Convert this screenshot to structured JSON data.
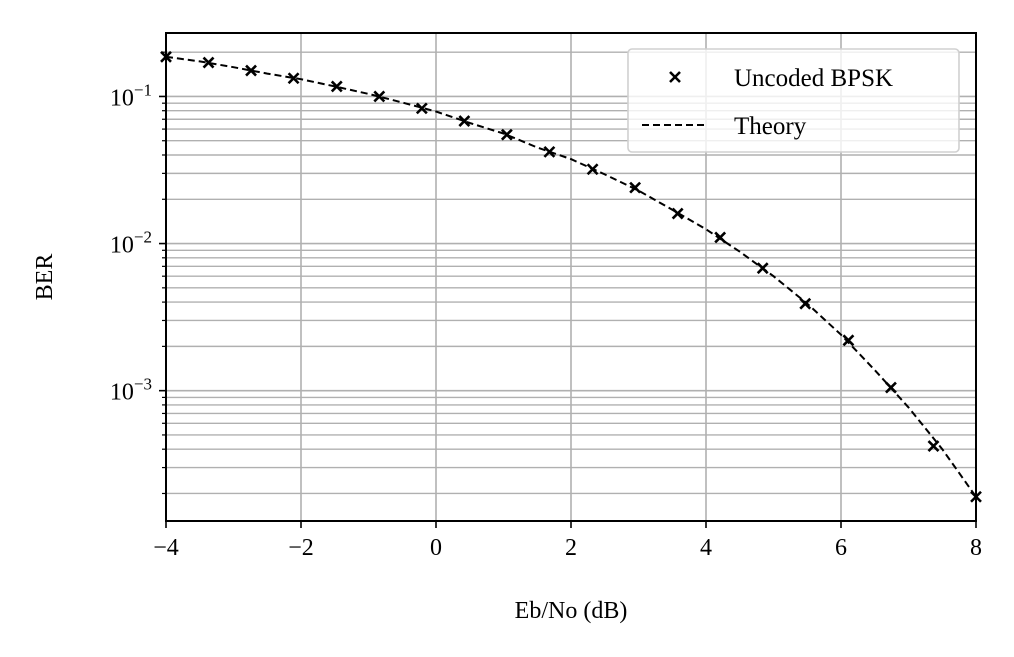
{
  "chart_data": {
    "type": "scatter",
    "xlabel": "Eb/No (dB)",
    "ylabel": "BER",
    "xlim": [
      -4,
      8
    ],
    "ylim": [
      0.00013,
      0.27
    ],
    "yscale": "log",
    "grid": true,
    "grid_minor": true,
    "legend_position": "top-right",
    "x_ticks": [
      -4,
      -2,
      0,
      2,
      4,
      6,
      8
    ],
    "x_tick_labels": [
      "−4",
      "−2",
      "0",
      "2",
      "4",
      "6",
      "8"
    ],
    "y_ticks": [
      0.1,
      0.01,
      0.001
    ],
    "y_tick_labels": [
      {
        "base": "10",
        "exp": "−1"
      },
      {
        "base": "10",
        "exp": "−2"
      },
      {
        "base": "10",
        "exp": "−3"
      }
    ],
    "series": [
      {
        "name": "Uncoded BPSK",
        "style": "markers",
        "marker": "x",
        "color": "#000000",
        "x": [
          -4.0,
          -3.37,
          -2.74,
          -2.11,
          -1.47,
          -0.84,
          -0.21,
          0.42,
          1.05,
          1.68,
          2.32,
          2.95,
          3.58,
          4.21,
          4.84,
          5.47,
          6.11,
          6.74,
          7.37,
          8.0
        ],
        "y": [
          0.186,
          0.17,
          0.15,
          0.133,
          0.117,
          0.1,
          0.083,
          0.068,
          0.055,
          0.042,
          0.032,
          0.024,
          0.016,
          0.011,
          0.0068,
          0.0039,
          0.0022,
          0.00105,
          0.00042,
          0.00019
        ]
      },
      {
        "name": "Theory",
        "style": "dashed-line",
        "color": "#000000",
        "x": [
          -4.0,
          -3.5,
          -3.0,
          -2.5,
          -2.0,
          -1.5,
          -1.0,
          -0.5,
          0.0,
          0.5,
          1.0,
          1.5,
          2.0,
          2.5,
          3.0,
          3.5,
          4.0,
          4.5,
          5.0,
          5.5,
          6.0,
          6.5,
          7.0,
          7.5,
          8.0
        ],
        "y": [
          0.186,
          0.173,
          0.158,
          0.143,
          0.131,
          0.117,
          0.104,
          0.091,
          0.079,
          0.066,
          0.056,
          0.045,
          0.0375,
          0.0295,
          0.0229,
          0.017,
          0.0125,
          0.0088,
          0.006,
          0.0039,
          0.0024,
          0.00138,
          0.00077,
          0.0004,
          0.00019
        ]
      }
    ]
  }
}
